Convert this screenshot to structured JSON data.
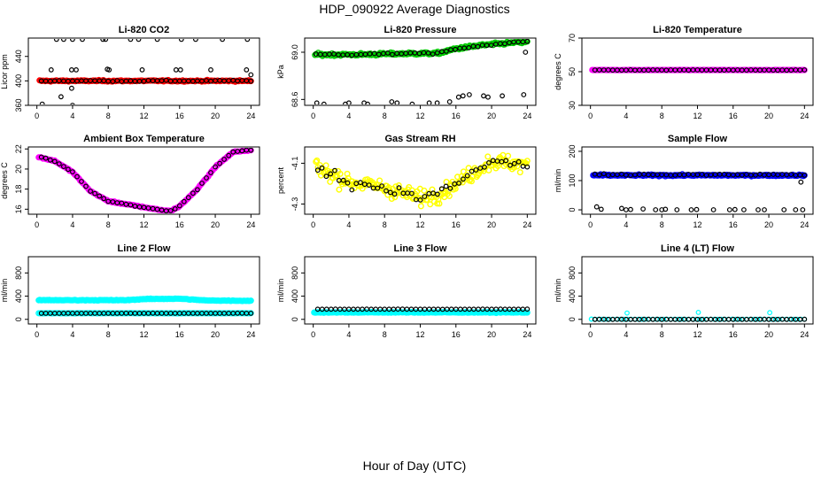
{
  "title": "HDP_090922  Average Diagnostics",
  "xlabel": "Hour of Day (UTC)",
  "colors": {
    "red": "#ff0000",
    "green": "#00cc00",
    "magenta": "#ff00ff",
    "yellow": "#ffff00",
    "blue": "#0000ff",
    "cyan": "#00ffff",
    "black": "#000000"
  },
  "chart_data": [
    {
      "type": "scatter",
      "title": "Li-820 CO2",
      "ylabel": "Licor ppm",
      "xlim": [
        0,
        24
      ],
      "ylim": [
        360,
        470
      ],
      "xticks": [
        "0",
        "4",
        "8",
        "12",
        "16",
        "20",
        "24"
      ],
      "yticks": [
        "360",
        "400",
        "440"
      ],
      "series": [
        {
          "name": "dense",
          "color": "red",
          "x_range": [
            0.3,
            24
          ],
          "y": 400,
          "noise": 1.2,
          "n": 190,
          "dense": true
        },
        {
          "name": "averages",
          "color": "black",
          "x_range": [
            0.5,
            24
          ],
          "y": 400,
          "noise": 1,
          "n": 48,
          "outliers": [
            [
              2.2,
              468
            ],
            [
              3.0,
              468
            ],
            [
              4.0,
              468
            ],
            [
              5.1,
              468
            ],
            [
              7.4,
              468
            ],
            [
              7.7,
              468
            ],
            [
              10.5,
              468
            ],
            [
              11.4,
              468
            ],
            [
              13.5,
              468
            ],
            [
              16.2,
              468
            ],
            [
              17.8,
              468
            ],
            [
              20.8,
              468
            ],
            [
              23.6,
              468
            ],
            [
              1.6,
              418
            ],
            [
              3.9,
              418
            ],
            [
              4.4,
              418
            ],
            [
              7.9,
              419
            ],
            [
              8.1,
              418
            ],
            [
              11.8,
              418
            ],
            [
              15.6,
              418
            ],
            [
              16.1,
              418
            ],
            [
              19.5,
              418
            ],
            [
              23.5,
              418
            ],
            [
              0.6,
              362
            ],
            [
              2.7,
              374
            ],
            [
              3.9,
              388
            ],
            [
              4.0,
              360
            ],
            [
              24.0,
              410
            ]
          ]
        }
      ]
    },
    {
      "type": "scatter",
      "title": "Li-820 Pressure",
      "ylabel": "kPa",
      "xlim": [
        0,
        24
      ],
      "ylim": [
        68.55,
        69.12
      ],
      "xticks": [
        "0",
        "4",
        "8",
        "12",
        "16",
        "20",
        "24"
      ],
      "yticks": [
        "68.6",
        "69.0"
      ],
      "series": [
        {
          "name": "dense",
          "color": "green",
          "trend": [
            [
              0.2,
              68.98
            ],
            [
              5,
              68.98
            ],
            [
              12,
              68.99
            ],
            [
              14,
              68.99
            ],
            [
              16,
              69.03
            ],
            [
              19,
              69.06
            ],
            [
              24,
              69.09
            ]
          ],
          "noise": 0.012,
          "n": 200,
          "dense": true
        },
        {
          "name": "averages",
          "color": "black",
          "trend": [
            [
              0.3,
              68.98
            ],
            [
              5,
              68.98
            ],
            [
              12,
              68.99
            ],
            [
              14,
              68.99
            ],
            [
              16,
              69.03
            ],
            [
              19,
              69.06
            ],
            [
              24,
              69.09
            ]
          ],
          "noise": 0.01,
          "n": 48,
          "outliers": [
            [
              0.4,
              68.57
            ],
            [
              1.2,
              68.56
            ],
            [
              3.6,
              68.56
            ],
            [
              4.0,
              68.57
            ],
            [
              5.7,
              68.57
            ],
            [
              6.1,
              68.56
            ],
            [
              8.8,
              68.58
            ],
            [
              9.4,
              68.57
            ],
            [
              11.1,
              68.56
            ],
            [
              13.0,
              68.57
            ],
            [
              13.9,
              68.57
            ],
            [
              15.3,
              68.58
            ],
            [
              16.3,
              68.62
            ],
            [
              16.8,
              68.63
            ],
            [
              17.5,
              68.64
            ],
            [
              19.1,
              68.63
            ],
            [
              19.6,
              68.62
            ],
            [
              21.2,
              68.63
            ],
            [
              23.6,
              68.64
            ],
            [
              23.8,
              69.0
            ]
          ]
        }
      ]
    },
    {
      "type": "scatter",
      "title": "Li-820 Temperature",
      "ylabel": "degrees C",
      "xlim": [
        0,
        24
      ],
      "ylim": [
        30,
        70
      ],
      "xticks": [
        "0",
        "4",
        "8",
        "12",
        "16",
        "20",
        "24"
      ],
      "yticks": [
        "30",
        "50",
        "70"
      ],
      "series": [
        {
          "name": "dense",
          "color": "magenta",
          "x_range": [
            0.2,
            24
          ],
          "y": 51,
          "noise": 0.1,
          "n": 190,
          "dense": true
        },
        {
          "name": "averages",
          "color": "black",
          "x_range": [
            0.5,
            24
          ],
          "y": 51,
          "noise": 0.1,
          "n": 48
        }
      ]
    },
    {
      "type": "scatter",
      "title": "Ambient Box Temperature",
      "ylabel": "degrees C",
      "xlim": [
        0,
        24
      ],
      "ylim": [
        15.5,
        22.2
      ],
      "xticks": [
        "0",
        "4",
        "8",
        "12",
        "16",
        "20",
        "24"
      ],
      "yticks": [
        "16",
        "18",
        "20",
        "22"
      ],
      "series": [
        {
          "name": "dense",
          "color": "magenta",
          "trend": [
            [
              0.2,
              21.2
            ],
            [
              2,
              20.8
            ],
            [
              4,
              19.7
            ],
            [
              6,
              17.8
            ],
            [
              8,
              16.8
            ],
            [
              10,
              16.5
            ],
            [
              12,
              16.2
            ],
            [
              14,
              15.9
            ],
            [
              15,
              15.8
            ],
            [
              16,
              16.3
            ],
            [
              18,
              18.0
            ],
            [
              20,
              20.2
            ],
            [
              22,
              21.7
            ],
            [
              24,
              21.9
            ]
          ],
          "noise": 0.06,
          "n": 200,
          "dense": true
        },
        {
          "name": "averages",
          "color": "black",
          "trend": [
            [
              0.5,
              21.2
            ],
            [
              2,
              20.8
            ],
            [
              4,
              19.7
            ],
            [
              6,
              17.8
            ],
            [
              8,
              16.8
            ],
            [
              10,
              16.5
            ],
            [
              12,
              16.2
            ],
            [
              14,
              15.9
            ],
            [
              15,
              15.8
            ],
            [
              16,
              16.3
            ],
            [
              18,
              18.0
            ],
            [
              20,
              20.2
            ],
            [
              22,
              21.7
            ],
            [
              24,
              21.9
            ]
          ],
          "noise": 0.05,
          "n": 48
        }
      ]
    },
    {
      "type": "scatter",
      "title": "Gas Stream RH",
      "ylabel": "percent",
      "xlim": [
        0,
        24
      ],
      "ylim": [
        -4.35,
        -4.02
      ],
      "xticks": [
        "0",
        "4",
        "8",
        "12",
        "16",
        "20",
        "24"
      ],
      "yticks": [
        "-4.3",
        "-4.1"
      ],
      "series": [
        {
          "name": "dense",
          "color": "yellow",
          "trend": [
            [
              0.3,
              -4.12
            ],
            [
              4,
              -4.19
            ],
            [
              8,
              -4.22
            ],
            [
              12,
              -4.27
            ],
            [
              14,
              -4.25
            ],
            [
              16,
              -4.2
            ],
            [
              20,
              -4.09
            ],
            [
              24,
              -4.11
            ]
          ],
          "noise": 0.04,
          "n": 210,
          "dense": true
        },
        {
          "name": "averages",
          "color": "black",
          "trend": [
            [
              0.5,
              -4.12
            ],
            [
              4,
              -4.19
            ],
            [
              8,
              -4.22
            ],
            [
              12,
              -4.27
            ],
            [
              14,
              -4.25
            ],
            [
              16,
              -4.2
            ],
            [
              20,
              -4.09
            ],
            [
              24,
              -4.11
            ]
          ],
          "noise": 0.03,
          "n": 50
        }
      ]
    },
    {
      "type": "scatter",
      "title": "Sample Flow",
      "ylabel": "ml/min",
      "xlim": [
        0,
        24
      ],
      "ylim": [
        -15,
        215
      ],
      "xticks": [
        "0",
        "4",
        "8",
        "12",
        "16",
        "20",
        "24"
      ],
      "yticks": [
        "0",
        "100",
        "200"
      ],
      "series": [
        {
          "name": "dense",
          "color": "blue",
          "x_range": [
            0.3,
            24
          ],
          "y": 118,
          "noise": 2.5,
          "n": 200,
          "dense": true
        },
        {
          "name": "averages",
          "color": "black",
          "x_range": [
            0.5,
            24
          ],
          "y": 120,
          "noise": 3,
          "n": 48,
          "outliers": [
            [
              0.7,
              10
            ],
            [
              1.2,
              2
            ],
            [
              3.5,
              5
            ],
            [
              4.0,
              0
            ],
            [
              4.5,
              1
            ],
            [
              5.9,
              3
            ],
            [
              7.3,
              0
            ],
            [
              8.0,
              0
            ],
            [
              8.4,
              2
            ],
            [
              9.7,
              0
            ],
            [
              11.3,
              0
            ],
            [
              11.9,
              1
            ],
            [
              13.8,
              0
            ],
            [
              15.6,
              0
            ],
            [
              16.2,
              1
            ],
            [
              17.2,
              0
            ],
            [
              18.8,
              0
            ],
            [
              19.5,
              0
            ],
            [
              21.7,
              0
            ],
            [
              23.0,
              0
            ],
            [
              23.8,
              0
            ],
            [
              23.6,
              95
            ]
          ]
        }
      ]
    },
    {
      "type": "scatter",
      "title": "Line 2 Flow",
      "ylabel": "ml/min",
      "xlim": [
        0,
        24
      ],
      "ylim": [
        -80,
        1080
      ],
      "xticks": [
        "0",
        "4",
        "8",
        "12",
        "16",
        "20",
        "24"
      ],
      "yticks": [
        "0",
        "400",
        "800"
      ],
      "series": [
        {
          "name": "upper",
          "color": "cyan",
          "trend": [
            [
              0.2,
              330
            ],
            [
              10,
              330
            ],
            [
              12,
              350
            ],
            [
              16,
              355
            ],
            [
              19,
              325
            ],
            [
              24,
              320
            ]
          ],
          "noise": 6,
          "n": 200,
          "dense": true
        },
        {
          "name": "lower",
          "color": "cyan",
          "x_range": [
            0.2,
            24
          ],
          "y": 105,
          "noise": 2,
          "n": 150,
          "dense": true
        },
        {
          "name": "averages",
          "color": "black",
          "x_range": [
            0.5,
            24
          ],
          "y": 105,
          "noise": 1,
          "n": 48
        }
      ]
    },
    {
      "type": "scatter",
      "title": "Line 3 Flow",
      "ylabel": "ml/min",
      "xlim": [
        0,
        24
      ],
      "ylim": [
        -80,
        1080
      ],
      "xticks": [
        "0",
        "4",
        "8",
        "12",
        "16",
        "20",
        "24"
      ],
      "yticks": [
        "0",
        "400",
        "800"
      ],
      "series": [
        {
          "name": "dense",
          "color": "cyan",
          "x_range": [
            0.1,
            24
          ],
          "y": 120,
          "noise": 8,
          "n": 200,
          "dense": true
        },
        {
          "name": "averages",
          "color": "black",
          "x_range": [
            0.5,
            24
          ],
          "y": 175,
          "noise": 1,
          "n": 48
        }
      ]
    },
    {
      "type": "scatter",
      "title": "Line 4 (LT) Flow",
      "ylabel": "ml/min",
      "xlim": [
        0,
        24
      ],
      "ylim": [
        -80,
        1080
      ],
      "xticks": [
        "0",
        "4",
        "8",
        "12",
        "16",
        "20",
        "24"
      ],
      "yticks": [
        "0",
        "400",
        "800"
      ],
      "series": [
        {
          "name": "dense",
          "color": "cyan",
          "x_range": [
            0.1,
            24
          ],
          "y": 2,
          "noise": 1,
          "n": 60,
          "dense": false,
          "outliers": [
            [
              0.1,
              5
            ],
            [
              4.1,
              110
            ],
            [
              12.1,
              120
            ],
            [
              20.1,
              115
            ]
          ]
        },
        {
          "name": "averages",
          "color": "black",
          "x_range": [
            0.5,
            24
          ],
          "y": 0,
          "noise": 1,
          "n": 48
        }
      ]
    }
  ]
}
